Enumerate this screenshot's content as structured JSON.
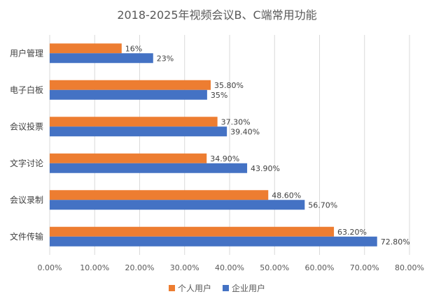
{
  "chart_data": {
    "type": "bar",
    "orientation": "horizontal",
    "title": "2018-2025年视频会议B、C端常用功能",
    "categories": [
      "用户管理",
      "电子白板",
      "会议投票",
      "文字讨论",
      "会议录制",
      "文件传输"
    ],
    "series": [
      {
        "name": "个人用户",
        "color": "#ED7D31",
        "values": [
          16,
          35.8,
          37.3,
          34.9,
          48.6,
          63.2
        ],
        "labels": [
          "16%",
          "35.80%",
          "37.30%",
          "34.90%",
          "48.60%",
          "63.20%"
        ]
      },
      {
        "name": "企业用户",
        "color": "#4472C4",
        "values": [
          23,
          35,
          39.4,
          43.9,
          56.7,
          72.8
        ],
        "labels": [
          "23%",
          "35%",
          "39.40%",
          "43.90%",
          "56.70%",
          "72.80%"
        ]
      }
    ],
    "xlim": [
      0,
      80
    ],
    "xticks": [
      "0.00%",
      "10.00%",
      "20.00%",
      "30.00%",
      "40.00%",
      "50.00%",
      "60.00%",
      "70.00%",
      "80.00%"
    ],
    "grid": true,
    "legend_position": "bottom"
  }
}
